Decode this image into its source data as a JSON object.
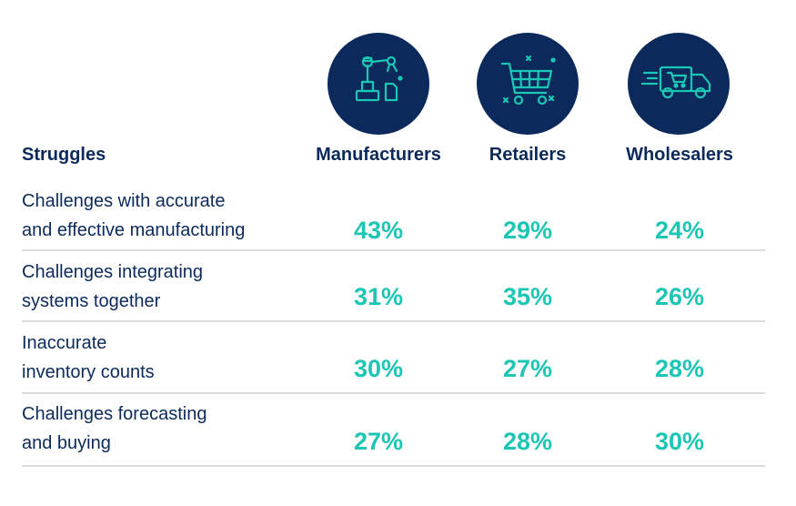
{
  "icons": {
    "manufacturers": "robot-arm-icon",
    "retailers": "shopping-cart-icon",
    "wholesalers": "delivery-truck-icon"
  },
  "colors": {
    "navy": "#0b2a5b",
    "teal": "#1cc6b4",
    "divider": "#dcdcdc"
  },
  "chart_data": {
    "type": "table",
    "row_header": "Struggles",
    "columns": [
      "Manufacturers",
      "Retailers",
      "Wholesalers"
    ],
    "rows": [
      {
        "label_lines": [
          "Challenges with accurate",
          "and effective manufacturing"
        ],
        "values": [
          "43%",
          "29%",
          "24%"
        ]
      },
      {
        "label_lines": [
          "Challenges integrating",
          "systems together"
        ],
        "values": [
          "31%",
          "35%",
          "26%"
        ]
      },
      {
        "label_lines": [
          "Inaccurate",
          "inventory counts"
        ],
        "values": [
          "30%",
          "27%",
          "28%"
        ]
      },
      {
        "label_lines": [
          "Challenges forecasting",
          "and buying"
        ],
        "values": [
          "27%",
          "28%",
          "30%"
        ]
      }
    ]
  }
}
